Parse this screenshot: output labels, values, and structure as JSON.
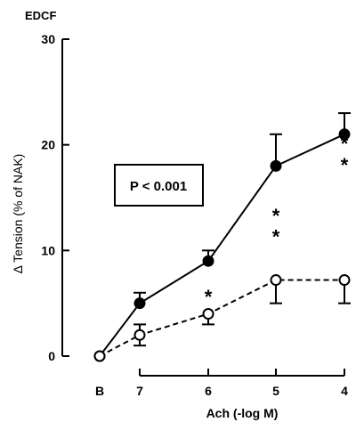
{
  "chart_data": {
    "type": "line",
    "title": "EDCF",
    "xlabel": "Ach (-log M)",
    "ylabel": "Δ Tension (% of NAK)",
    "ylim": [
      0,
      30
    ],
    "y_ticks": [
      "0",
      "10",
      "20",
      "30"
    ],
    "categories": [
      "B",
      "7",
      "6",
      "5",
      "4"
    ],
    "series": [
      {
        "marker": "filled-circle",
        "line_style": "solid",
        "values": [
          0,
          5,
          9,
          18,
          21
        ],
        "error_upper": [
          0,
          6,
          10,
          21,
          23
        ]
      },
      {
        "marker": "open-circle",
        "line_style": "dashed",
        "values": [
          0,
          2,
          4,
          7.2,
          7.2
        ],
        "error_lower": [
          0,
          1,
          3,
          5,
          5
        ],
        "error_upper": [
          0,
          3,
          4,
          7.2,
          7.2
        ]
      }
    ],
    "annotation_box": "P < 0.001",
    "significance": [
      {
        "category": "6",
        "label": "*",
        "y": 5.8
      },
      {
        "category": "5",
        "label": "*",
        "y": 11.5
      },
      {
        "category": "5",
        "label": "*",
        "y": 13.5
      },
      {
        "category": "4",
        "label": "*",
        "y": 18.3
      },
      {
        "category": "4",
        "label": "*",
        "y": 20.3
      }
    ]
  }
}
